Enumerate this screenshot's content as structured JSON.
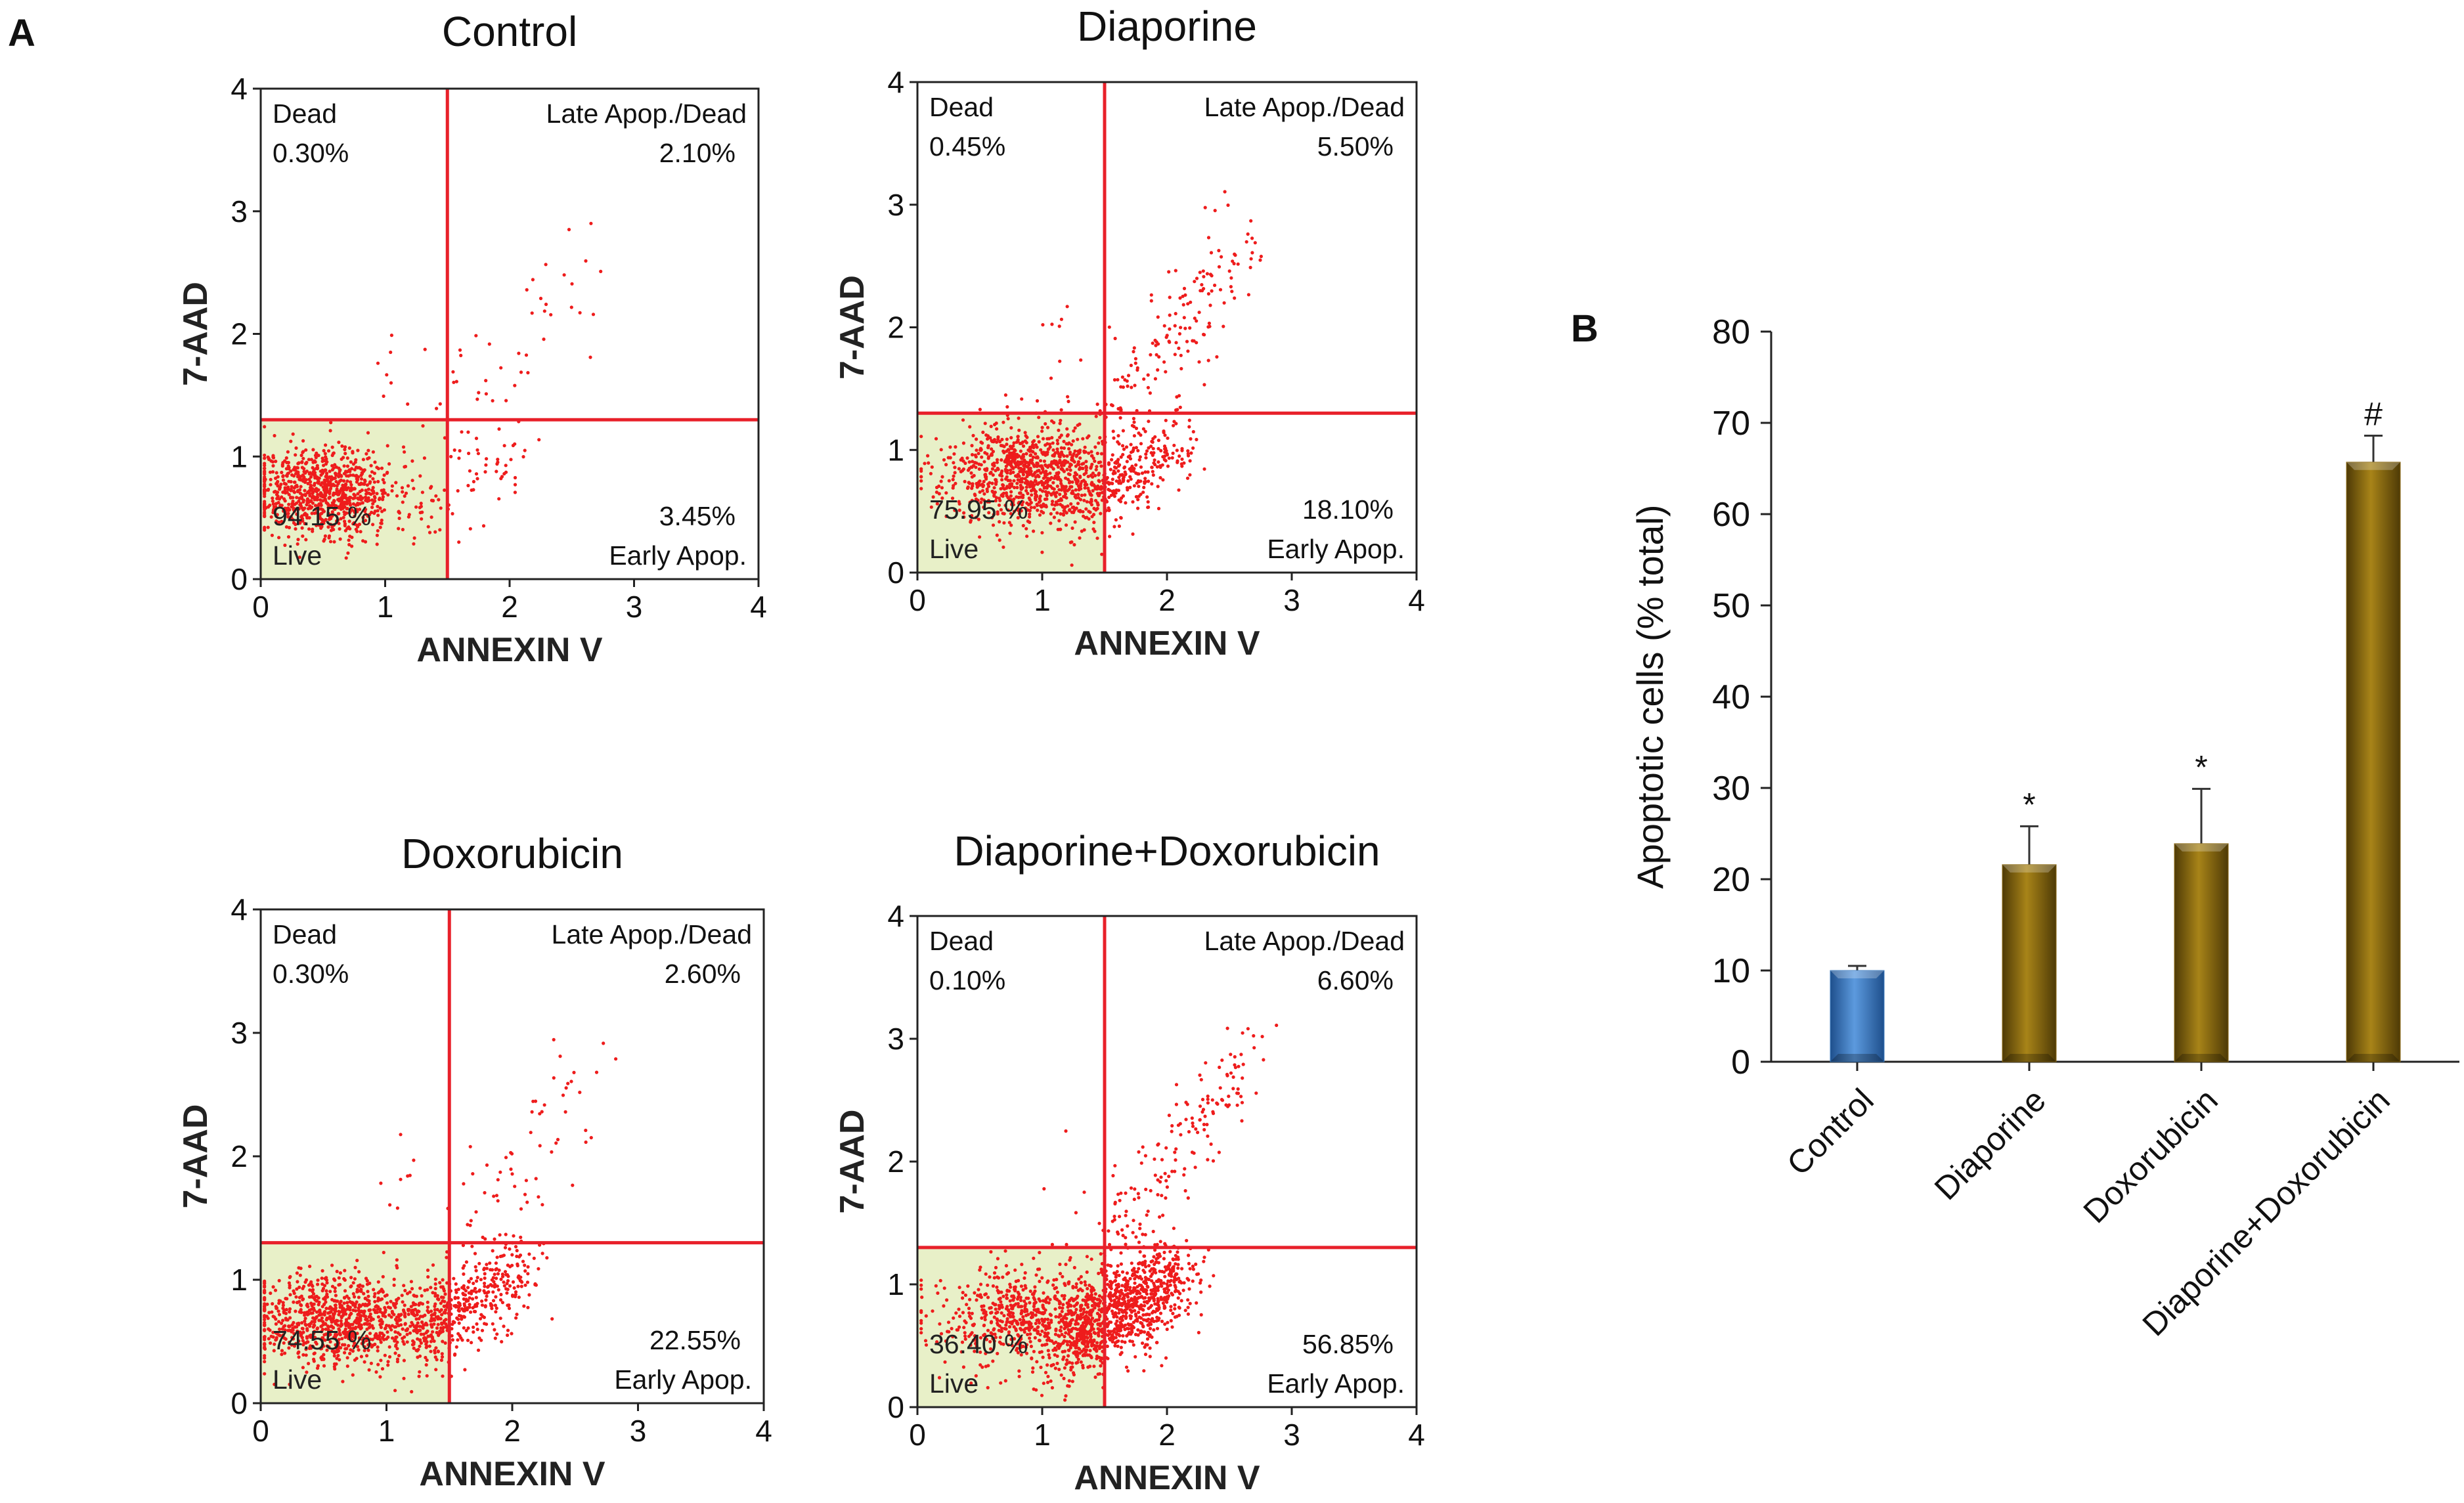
{
  "chart_data": [
    {
      "type": "scatter",
      "panel_label": "A",
      "title": "Control",
      "xlabel": "ANNEXIN V",
      "ylabel": "7-AAD",
      "xlim": [
        0,
        4
      ],
      "ylim": [
        0,
        4
      ],
      "xticks": [
        "0",
        "1",
        "2",
        "3",
        "4"
      ],
      "yticks": [
        "0",
        "1",
        "2",
        "3",
        "4"
      ],
      "gate_x": 1.5,
      "gate_y": 1.3,
      "quadrants": {
        "upper_left": {
          "label": "Dead",
          "value": "0.30%"
        },
        "upper_right": {
          "label": "Late Apop./Dead",
          "value": "2.10%"
        },
        "lower_left": {
          "label": "Live",
          "value": "94.15 %"
        },
        "lower_right": {
          "label": "Early Apop.",
          "value": "3.45%"
        }
      },
      "point_color": "#ee1c1c",
      "live_fill": "#e8f0c8",
      "gate_color": "#e8202a"
    },
    {
      "type": "scatter",
      "title": "Diaporine",
      "xlabel": "ANNEXIN V",
      "ylabel": "7-AAD",
      "xlim": [
        0,
        4
      ],
      "ylim": [
        0,
        4
      ],
      "xticks": [
        "0",
        "1",
        "2",
        "3",
        "4"
      ],
      "yticks": [
        "0",
        "1",
        "2",
        "3",
        "4"
      ],
      "gate_x": 1.5,
      "gate_y": 1.3,
      "quadrants": {
        "upper_left": {
          "label": "Dead",
          "value": "0.45%"
        },
        "upper_right": {
          "label": "Late Apop./Dead",
          "value": "5.50%"
        },
        "lower_left": {
          "label": "Live",
          "value": "75.95 %"
        },
        "lower_right": {
          "label": "Early Apop.",
          "value": "18.10%"
        }
      },
      "point_color": "#ee1c1c",
      "live_fill": "#e8f0c8",
      "gate_color": "#e8202a"
    },
    {
      "type": "scatter",
      "title": "Doxorubicin",
      "xlabel": "ANNEXIN V",
      "ylabel": "7-AAD",
      "xlim": [
        0,
        4
      ],
      "ylim": [
        0,
        4
      ],
      "xticks": [
        "0",
        "1",
        "2",
        "3",
        "4"
      ],
      "yticks": [
        "0",
        "1",
        "2",
        "3",
        "4"
      ],
      "gate_x": 1.5,
      "gate_y": 1.3,
      "quadrants": {
        "upper_left": {
          "label": "Dead",
          "value": "0.30%"
        },
        "upper_right": {
          "label": "Late Apop./Dead",
          "value": "2.60%"
        },
        "lower_left": {
          "label": "Live",
          "value": "74.55 %"
        },
        "lower_right": {
          "label": "Early Apop.",
          "value": "22.55%"
        }
      },
      "point_color": "#ee1c1c",
      "live_fill": "#e8f0c8",
      "gate_color": "#e8202a"
    },
    {
      "type": "scatter",
      "title": "Diaporine+Doxorubicin",
      "xlabel": "ANNEXIN V",
      "ylabel": "7-AAD",
      "xlim": [
        0,
        4
      ],
      "ylim": [
        0,
        4
      ],
      "xticks": [
        "0",
        "1",
        "2",
        "3",
        "4"
      ],
      "yticks": [
        "0",
        "1",
        "2",
        "3",
        "4"
      ],
      "gate_x": 1.5,
      "gate_y": 1.3,
      "quadrants": {
        "upper_left": {
          "label": "Dead",
          "value": "0.10%"
        },
        "upper_right": {
          "label": "Late Apop./Dead",
          "value": "6.60%"
        },
        "lower_left": {
          "label": "Live",
          "value": "36.40 %"
        },
        "lower_right": {
          "label": "Early Apop.",
          "value": "56.85%"
        }
      },
      "point_color": "#ee1c1c",
      "live_fill": "#e8f0c8",
      "gate_color": "#e8202a"
    },
    {
      "type": "bar",
      "panel_label": "B",
      "title": "",
      "xlabel": "",
      "ylabel": "Apoptotic cells (% total)",
      "ylim": [
        0,
        80
      ],
      "yticks": [
        0,
        10,
        20,
        30,
        40,
        50,
        60,
        70,
        80
      ],
      "categories": [
        "Control",
        "Diaporine",
        "Doxorubicin",
        "Diaporine+Doxorubicin"
      ],
      "values": [
        10,
        21.6,
        23.9,
        65.7
      ],
      "errors": [
        0.5,
        4.2,
        6.0,
        2.9
      ],
      "significance": [
        "",
        "*",
        "*",
        "#"
      ],
      "bar_colors": [
        "#3a79be",
        "#8c6a14",
        "#8c6a14",
        "#8c6a14"
      ]
    }
  ]
}
